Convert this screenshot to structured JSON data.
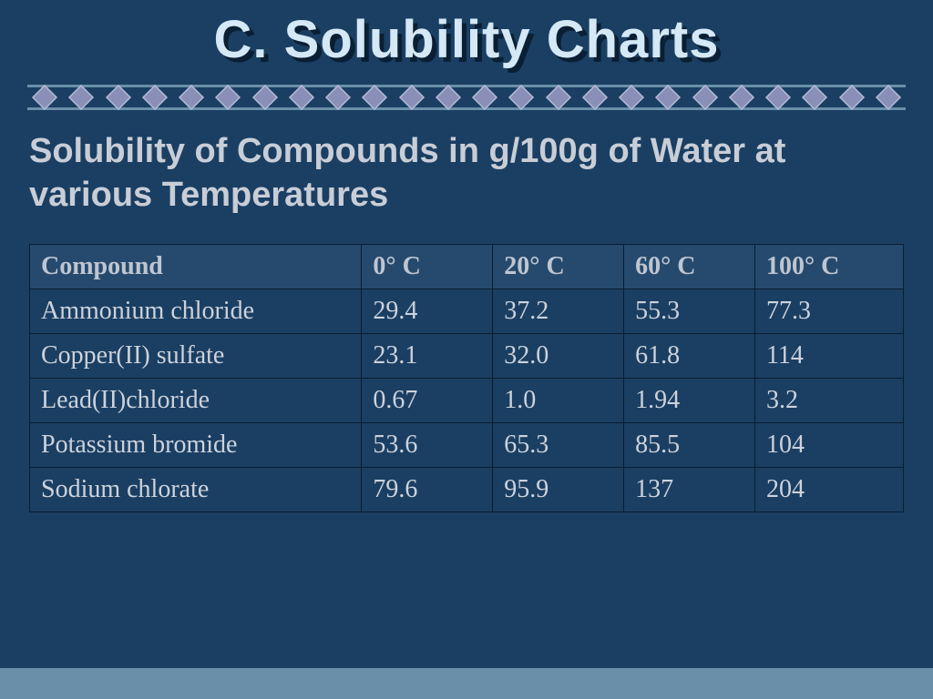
{
  "colors": {
    "background": "#1a3f63",
    "title_text": "#d4e8f5",
    "title_shadow": "#0a1f33",
    "divider_line": "#6a8fa8",
    "diamond_fill": "#8a8fb8",
    "diamond_stroke": "#b5bad6",
    "subtitle_text": "#c8cdd6",
    "table_border": "#0a1c30",
    "header_bg": "#254a6e",
    "header_text": "#bfc5d0",
    "row_bg": "#1a3f63",
    "row_text": "#cdd2db",
    "bottom_band": "#6a8fa8"
  },
  "typography": {
    "title_fontsize": 58,
    "subtitle_fontsize": 38,
    "header_fontsize": 28,
    "cell_fontsize": 28
  },
  "layout": {
    "diamond_count": 24,
    "cell_padding_v": 8,
    "cell_padding_h": 12,
    "col_widths_pct": [
      38,
      15,
      15,
      15,
      17
    ]
  },
  "title": "C. Solubility Charts",
  "subtitle": "Solubility of Compounds in g/100g of Water at various Temperatures",
  "table": {
    "columns": [
      "Compound",
      "0° C",
      "20° C",
      "60° C",
      "100° C"
    ],
    "rows": [
      [
        "Ammonium chloride",
        "29.4",
        "37.2",
        "55.3",
        "77.3"
      ],
      [
        "Copper(II) sulfate",
        "23.1",
        "32.0",
        "61.8",
        "114"
      ],
      [
        "Lead(II)chloride",
        "0.67",
        "1.0",
        "1.94",
        "3.2"
      ],
      [
        "Potassium bromide",
        "53.6",
        "65.3",
        "85.5",
        "104"
      ],
      [
        "Sodium chlorate",
        "79.6",
        "95.9",
        "137",
        "204"
      ]
    ]
  }
}
